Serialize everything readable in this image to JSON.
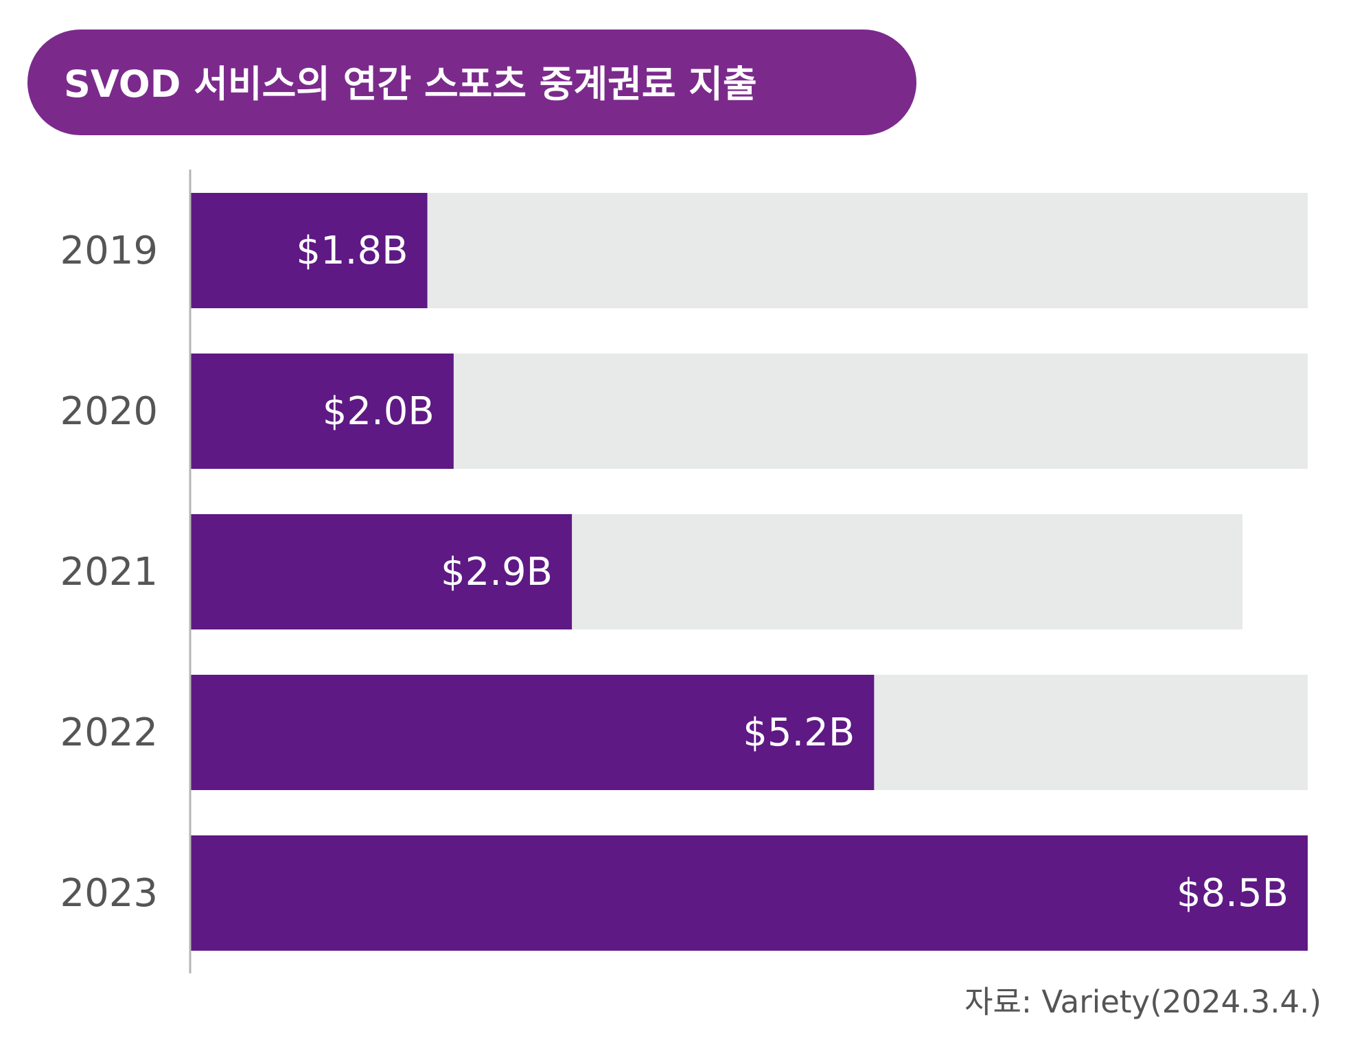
{
  "colors": {
    "title_bg": "#7B2A8C",
    "title_text": "#FFFFFF",
    "bar": "#5E1984",
    "track": "#E8E9E9",
    "axis": "#B5B5B5",
    "year_label": "#555555",
    "value_label": "#FFFFFF",
    "source_text": "#555555"
  },
  "chart_data": {
    "type": "bar",
    "orientation": "horizontal",
    "title": "SVOD 서비스의 연간 스포츠 중계권료 지출",
    "categories": [
      "2019",
      "2020",
      "2021",
      "2022",
      "2023"
    ],
    "values": [
      1.8,
      2.0,
      2.9,
      5.2,
      8.5
    ],
    "value_labels": [
      "$1.8B",
      "$2.0B",
      "$2.9B",
      "$5.2B",
      "$8.5B"
    ],
    "xlim": [
      0,
      8.5
    ],
    "grid": false,
    "legend": false,
    "source": "자료: Variety(2024.3.4.)"
  }
}
